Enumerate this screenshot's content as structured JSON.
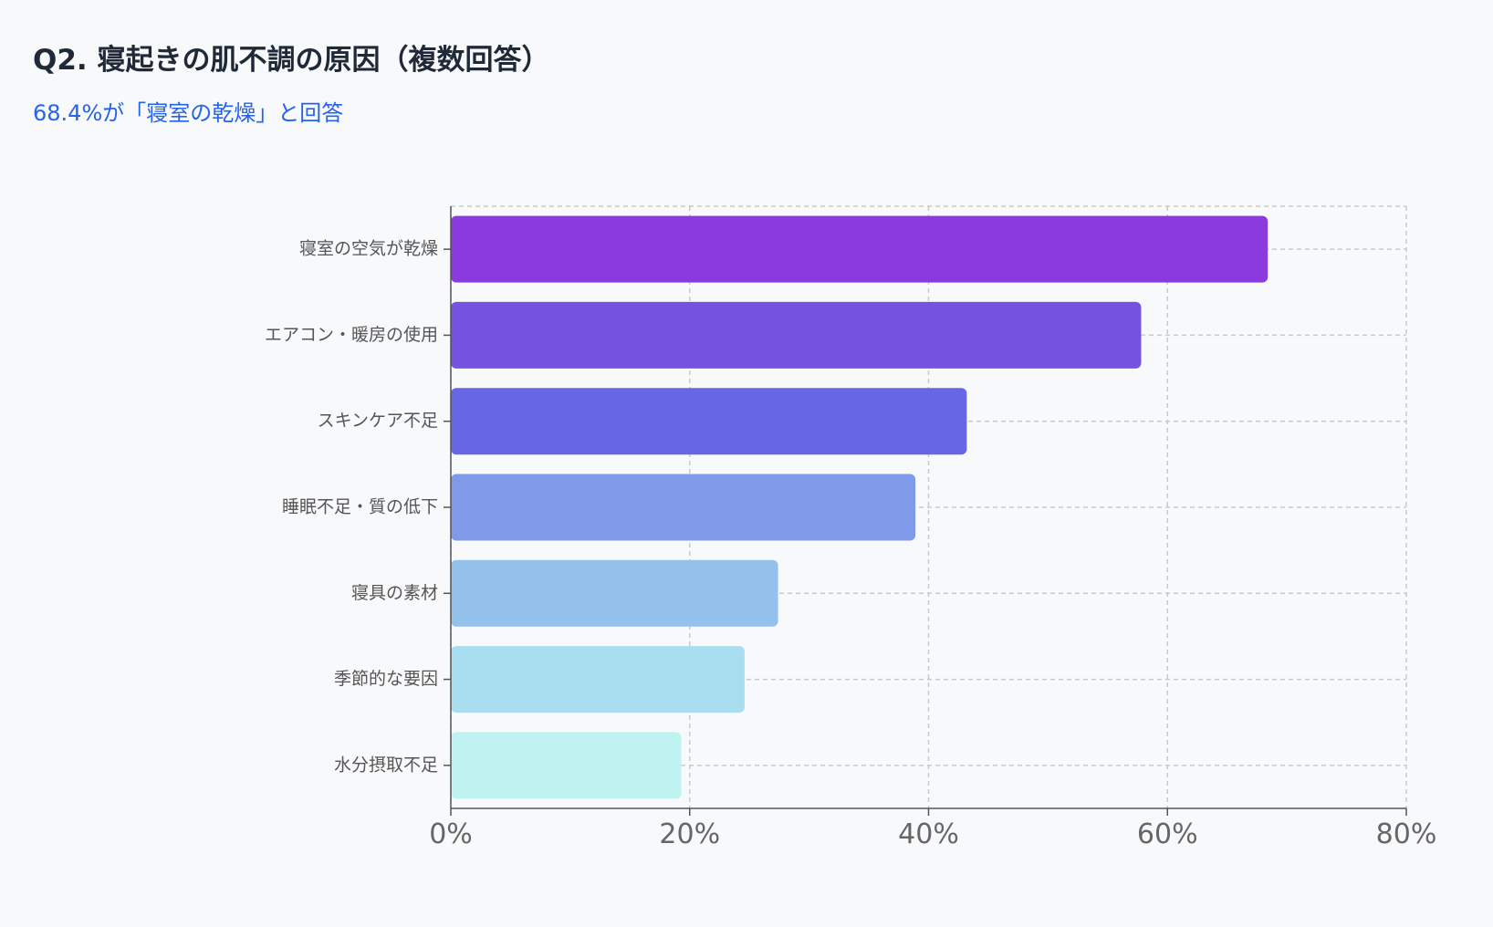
{
  "header": {
    "title": "Q2. 寝起きの肌不調の原因（複数回答）",
    "subtitle": "68.4%が「寝室の乾燥」と回答"
  },
  "chart_data": {
    "type": "bar",
    "orientation": "horizontal",
    "categories": [
      "寝室の空気が乾燥",
      "エアコン・暖房の使用",
      "スキンケア不足",
      "睡眠不足・質の低下",
      "寝具の素材",
      "季節的な要因",
      "水分摂取不足"
    ],
    "values": [
      68.4,
      57.8,
      43.2,
      38.9,
      27.4,
      24.6,
      19.3
    ],
    "colors": [
      "#8b3ae0",
      "#7552e0",
      "#6767e6",
      "#7e9ae9",
      "#95c1ed",
      "#a9def0",
      "#bef3f2"
    ],
    "xlim": [
      0,
      80
    ],
    "xticks": [
      "0%",
      "20%",
      "40%",
      "60%",
      "80%"
    ],
    "grid": true
  }
}
